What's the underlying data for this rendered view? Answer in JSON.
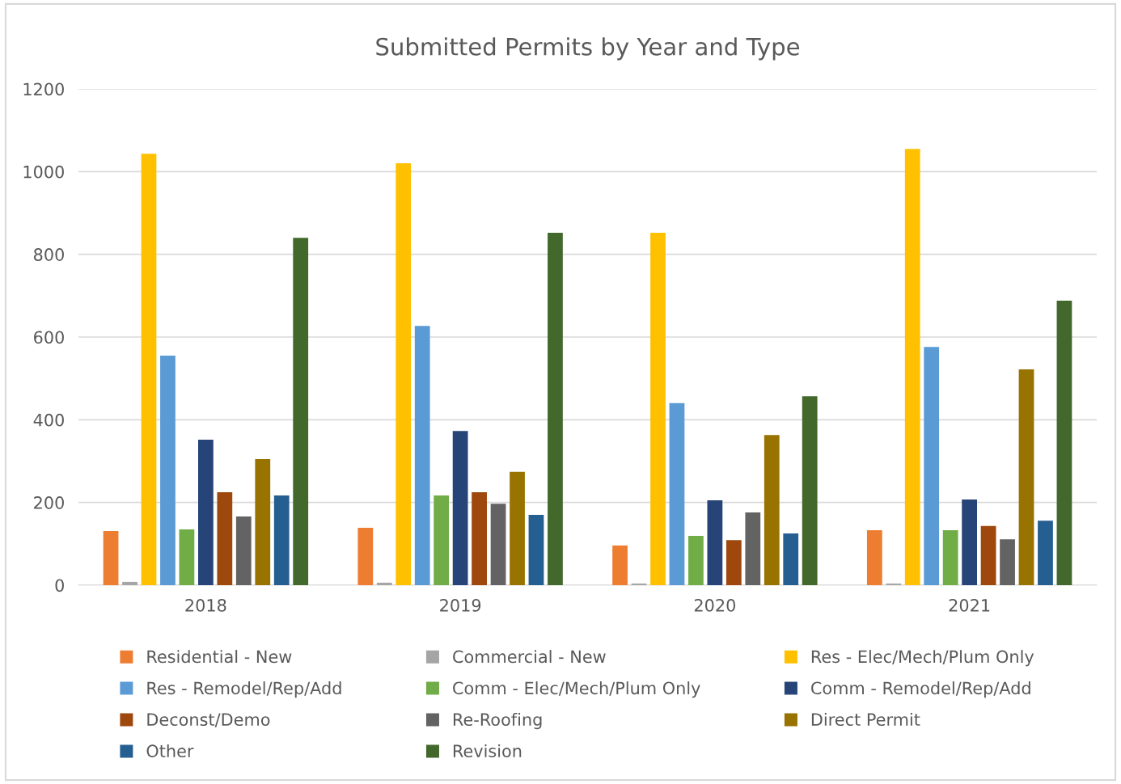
{
  "chart_data": {
    "type": "bar",
    "title": "Submitted Permits by Year and Type",
    "categories": [
      "2018",
      "2019",
      "2020",
      "2021"
    ],
    "ylim": [
      0,
      1200
    ],
    "yticks": [
      0,
      200,
      400,
      600,
      800,
      1000,
      1200
    ],
    "grid": "y",
    "legend": "bottom",
    "series": [
      {
        "name": "Residential - New",
        "color": "#ed7d31",
        "values": [
          131,
          139,
          96,
          133
        ]
      },
      {
        "name": "Commercial - New",
        "color": "#a5a5a5",
        "values": [
          8,
          6,
          4,
          4
        ]
      },
      {
        "name": "Res - Elec/Mech/Plum Only",
        "color": "#ffc000",
        "values": [
          1043,
          1020,
          852,
          1055
        ]
      },
      {
        "name": "Res - Remodel/Rep/Add",
        "color": "#5b9bd5",
        "values": [
          555,
          627,
          440,
          576
        ]
      },
      {
        "name": "Comm - Elec/Mech/Plum Only",
        "color": "#70ad47",
        "values": [
          135,
          217,
          119,
          133
        ]
      },
      {
        "name": "Comm - Remodel/Rep/Add",
        "color": "#264478",
        "values": [
          352,
          373,
          205,
          207
        ]
      },
      {
        "name": "Deconst/Demo",
        "color": "#9e480e",
        "values": [
          225,
          225,
          109,
          143
        ]
      },
      {
        "name": "Re-Roofing",
        "color": "#636363",
        "values": [
          166,
          197,
          176,
          111
        ]
      },
      {
        "name": "Direct Permit",
        "color": "#997300",
        "values": [
          305,
          274,
          363,
          522
        ]
      },
      {
        "name": "Other",
        "color": "#255e91",
        "values": [
          217,
          170,
          125,
          156
        ]
      },
      {
        "name": "Revision",
        "color": "#43682b",
        "values": [
          840,
          852,
          457,
          688
        ]
      }
    ]
  }
}
